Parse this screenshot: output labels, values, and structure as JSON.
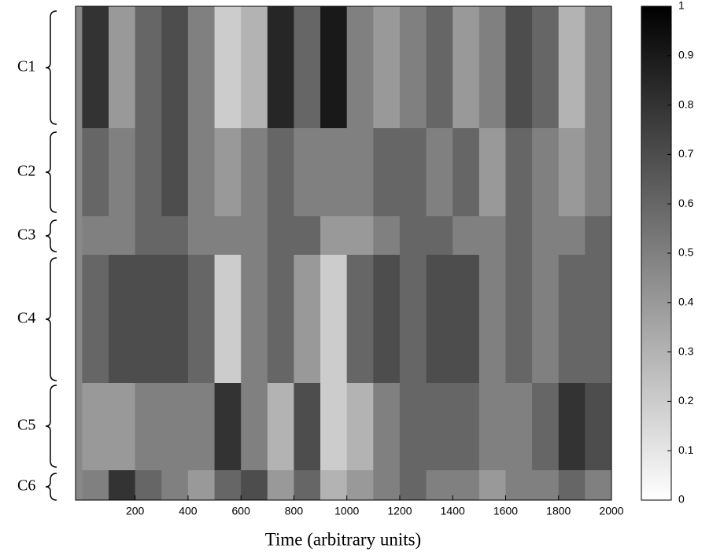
{
  "chart_data": {
    "type": "heatmap",
    "x_label": "Time (arbitrary units)",
    "bins": [
      0,
      100,
      200,
      300,
      400,
      500,
      600,
      700,
      800,
      900,
      1000,
      1100,
      1200,
      1300,
      1400,
      1500,
      1600,
      1700,
      1800,
      1900,
      2000
    ],
    "xlim": [
      -25,
      2000
    ],
    "xticks": [
      200,
      400,
      600,
      800,
      1000,
      1200,
      1400,
      1600,
      1800,
      2000
    ],
    "rows": [
      "C1",
      "C2",
      "C3",
      "C4",
      "C5",
      "C6"
    ],
    "values": [
      [
        0.8,
        0.4,
        0.6,
        0.7,
        0.5,
        0.2,
        0.3,
        0.85,
        0.6,
        0.9,
        0.5,
        0.4,
        0.5,
        0.6,
        0.4,
        0.5,
        0.7,
        0.6,
        0.3,
        0.5
      ],
      [
        0.6,
        0.5,
        0.6,
        0.7,
        0.5,
        0.4,
        0.5,
        0.6,
        0.5,
        0.5,
        0.5,
        0.6,
        0.6,
        0.5,
        0.6,
        0.4,
        0.6,
        0.5,
        0.4,
        0.5
      ],
      [
        0.5,
        0.5,
        0.6,
        0.6,
        0.5,
        0.5,
        0.5,
        0.6,
        0.6,
        0.4,
        0.4,
        0.5,
        0.6,
        0.6,
        0.5,
        0.5,
        0.6,
        0.5,
        0.5,
        0.6
      ],
      [
        0.6,
        0.7,
        0.7,
        0.7,
        0.6,
        0.2,
        0.5,
        0.6,
        0.4,
        0.2,
        0.6,
        0.7,
        0.6,
        0.7,
        0.7,
        0.5,
        0.6,
        0.5,
        0.6,
        0.6
      ],
      [
        0.4,
        0.4,
        0.5,
        0.5,
        0.5,
        0.8,
        0.5,
        0.3,
        0.7,
        0.2,
        0.3,
        0.5,
        0.6,
        0.6,
        0.6,
        0.5,
        0.5,
        0.6,
        0.8,
        0.7
      ],
      [
        0.5,
        0.8,
        0.6,
        0.5,
        0.4,
        0.6,
        0.7,
        0.4,
        0.6,
        0.3,
        0.4,
        0.5,
        0.6,
        0.5,
        0.5,
        0.4,
        0.5,
        0.5,
        0.6,
        0.5
      ]
    ],
    "colorbar": {
      "lim": [
        0,
        1
      ],
      "ticks": [
        0,
        0.1,
        0.2,
        0.3,
        0.4,
        0.5,
        0.6,
        0.7,
        0.8,
        0.9,
        1
      ]
    }
  }
}
